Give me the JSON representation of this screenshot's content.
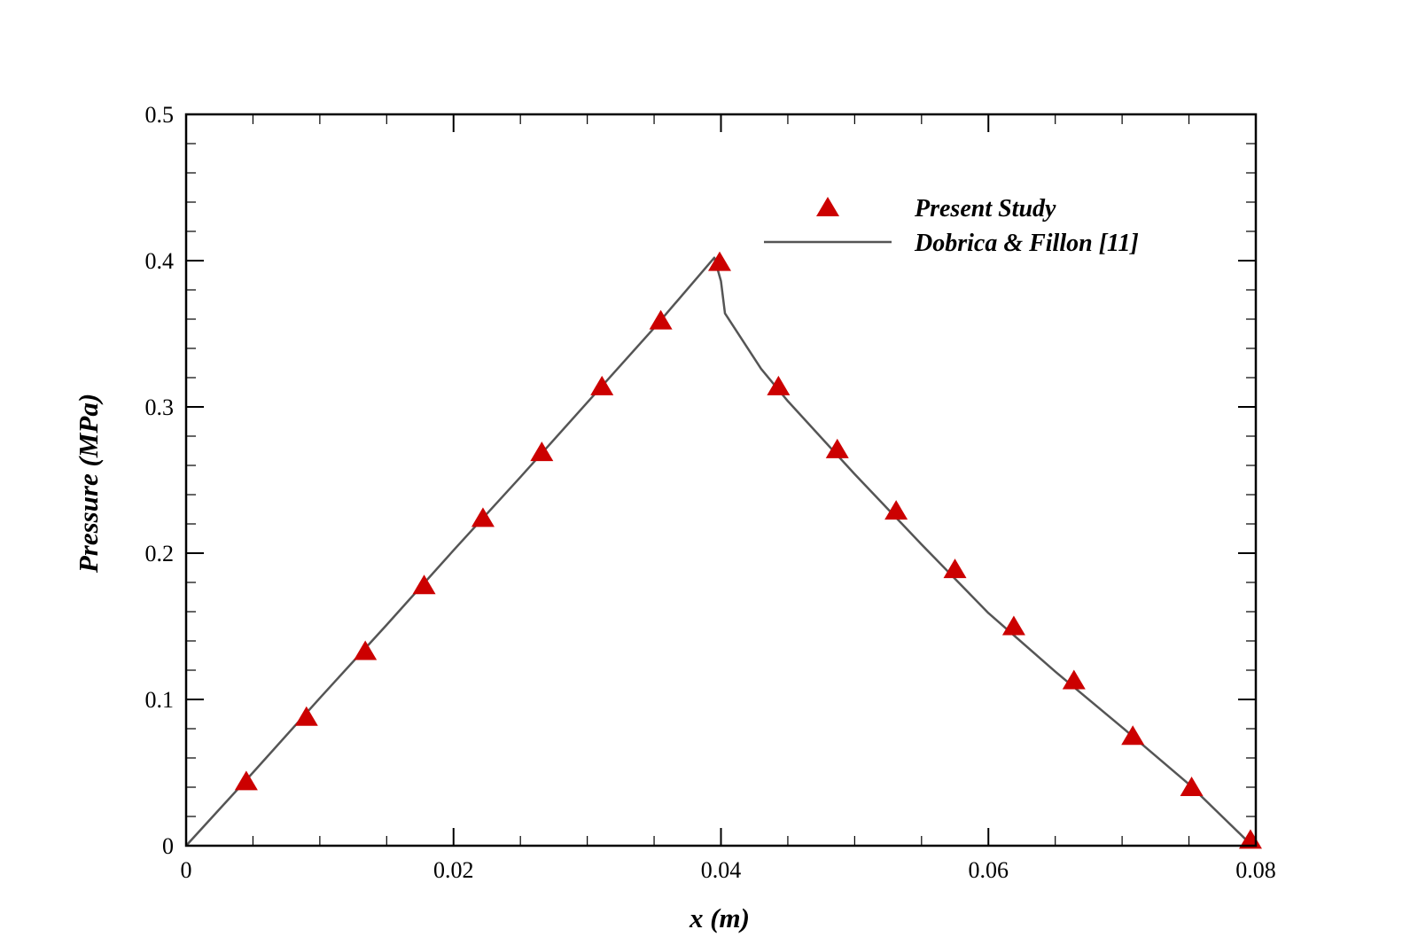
{
  "chart_data": {
    "type": "line",
    "xlabel": "x (m)",
    "ylabel": "Pressure (MPa)",
    "xlim": [
      0,
      0.08
    ],
    "ylim": [
      0,
      0.5
    ],
    "x_ticks": [
      "0",
      "0.02",
      "0.04",
      "0.06",
      "0.08"
    ],
    "y_ticks": [
      "0",
      "0.1",
      "0.2",
      "0.3",
      "0.4",
      "0.5"
    ],
    "grid": false,
    "legend_position": "top-right",
    "series": [
      {
        "name": "Present Study",
        "kind": "scatter",
        "marker": "triangle",
        "color": "#cc0000",
        "x": [
          0.0045,
          0.009,
          0.0134,
          0.0178,
          0.0222,
          0.0266,
          0.0311,
          0.0355,
          0.0399,
          0.0443,
          0.0487,
          0.0531,
          0.0575,
          0.0619,
          0.0664,
          0.0708,
          0.0752,
          0.0796
        ],
        "y": [
          0.044,
          0.088,
          0.133,
          0.178,
          0.224,
          0.269,
          0.314,
          0.359,
          0.399,
          0.314,
          0.271,
          0.229,
          0.189,
          0.15,
          0.113,
          0.075,
          0.04,
          0.004
        ]
      },
      {
        "name": "Dobrica & Fillon [11]",
        "kind": "line",
        "color": "#555555",
        "x": [
          0.0,
          0.005,
          0.01,
          0.015,
          0.02,
          0.025,
          0.03,
          0.035,
          0.0395,
          0.04,
          0.0403,
          0.043,
          0.045,
          0.05,
          0.055,
          0.06,
          0.065,
          0.07,
          0.075,
          0.0795
        ],
        "y": [
          0.0,
          0.05,
          0.101,
          0.151,
          0.202,
          0.252,
          0.303,
          0.354,
          0.402,
          0.386,
          0.364,
          0.326,
          0.304,
          0.254,
          0.206,
          0.159,
          0.119,
          0.081,
          0.042,
          0.002
        ]
      }
    ]
  }
}
